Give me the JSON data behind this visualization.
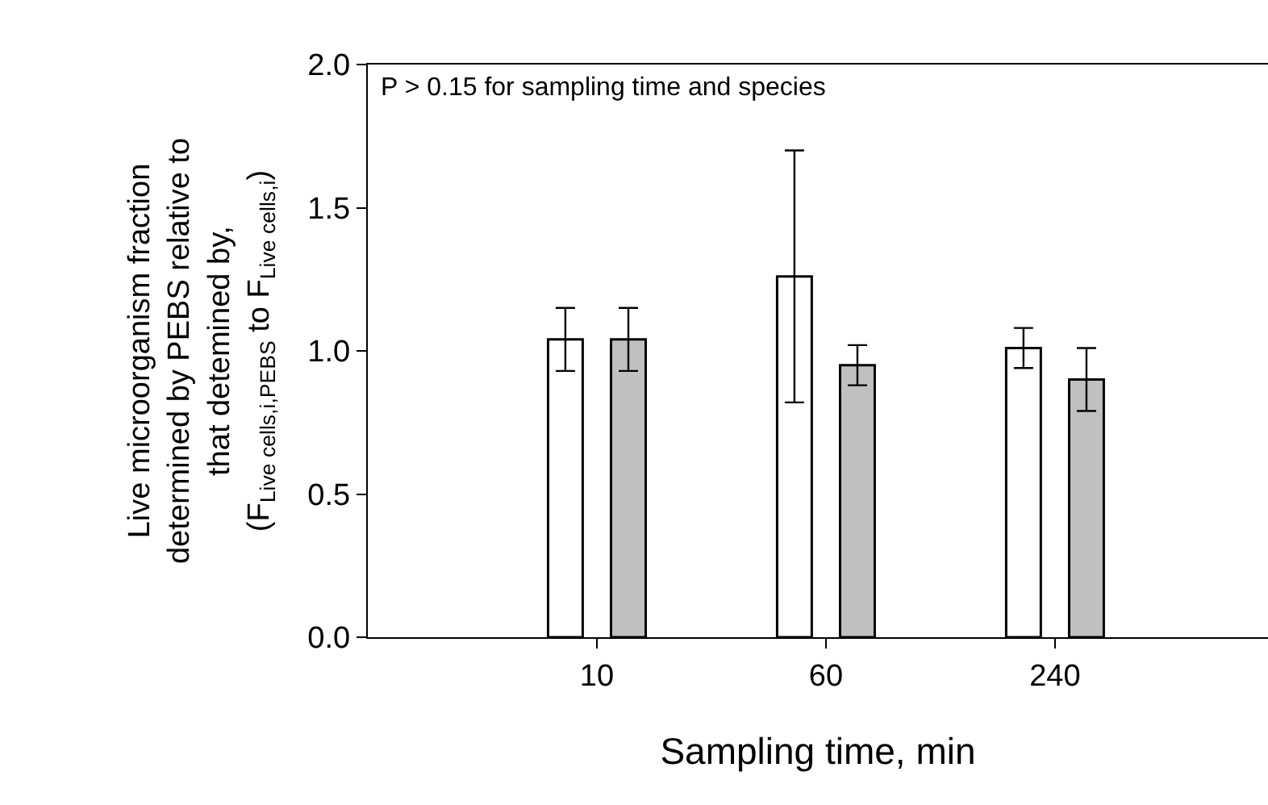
{
  "chart_data": {
    "type": "bar",
    "xlabel": "Sampling time, min",
    "ylabel": "Live microorganism fraction\ndetermined by PEBS relative to\nthat detemined by,\n(F$_{Live cells,i,PEBS}$ to F$_{Live cells,i}$)",
    "categories": [
      "10",
      "60",
      "240"
    ],
    "series": [
      {
        "color": "#ffffff",
        "values": [
          1.04,
          1.26,
          1.01
        ],
        "errors": [
          0.11,
          0.44,
          0.07
        ]
      },
      {
        "color": "#c0c0c0",
        "values": [
          1.04,
          0.95,
          0.9
        ],
        "errors": [
          0.11,
          0.07,
          0.11
        ]
      }
    ],
    "ylim": [
      0,
      2.0
    ],
    "yticks": [
      {
        "value": 0,
        "label": "0.0"
      },
      {
        "value": 0.5,
        "label": "0.5"
      },
      {
        "value": 1.0,
        "label": "1.0"
      },
      {
        "value": 1.5,
        "label": "1.5"
      },
      {
        "value": 2.0,
        "label": "2.0"
      }
    ],
    "annotations": [
      "P > 0.15 for sampling time and species"
    ]
  }
}
